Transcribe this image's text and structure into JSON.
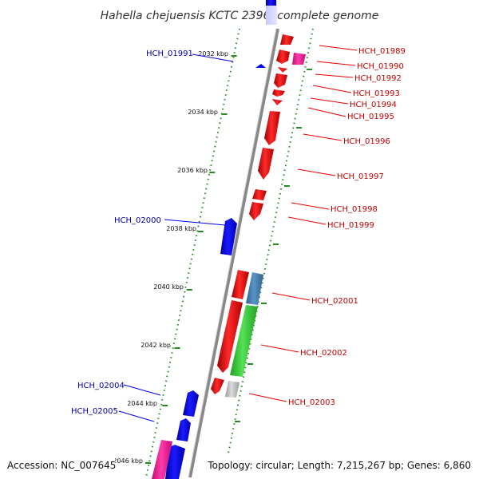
{
  "title": "Hahella chejuensis KCTC 2396, complete genome",
  "accession_text": "Accession: NC_007645",
  "topology_text": "Topology: circular; Length: 7,215,267 bp; Genes: 6,860",
  "kbp_ticks": [
    "2032 kbp",
    "2034 kbp",
    "2036 kbp",
    "2038 kbp",
    "2040 kbp",
    "2042 kbp",
    "2044 kbp",
    "2046 kbp"
  ],
  "gene_labels_left": [
    "HCH_01991",
    "HCH_02000",
    "HCH_02004",
    "HCH_02005"
  ],
  "gene_labels_right": [
    "HCH_01989",
    "HCH_01990",
    "HCH_01992",
    "HCH_01993",
    "HCH_01994",
    "HCH_01995",
    "HCH_01996",
    "HCH_01997",
    "HCH_01998",
    "HCH_01999",
    "HCH_02001",
    "HCH_02002",
    "HCH_02003"
  ],
  "colors": {
    "forward_gene": "#ee0000",
    "reverse_gene": "#0000ee",
    "pink_gene": "#ff1493",
    "rna_blue": "#4682b4",
    "rna_green": "#32cd32",
    "gray_feature": "#bbbbbb",
    "backbone": "#888888",
    "tick_dots": "#228b22"
  }
}
